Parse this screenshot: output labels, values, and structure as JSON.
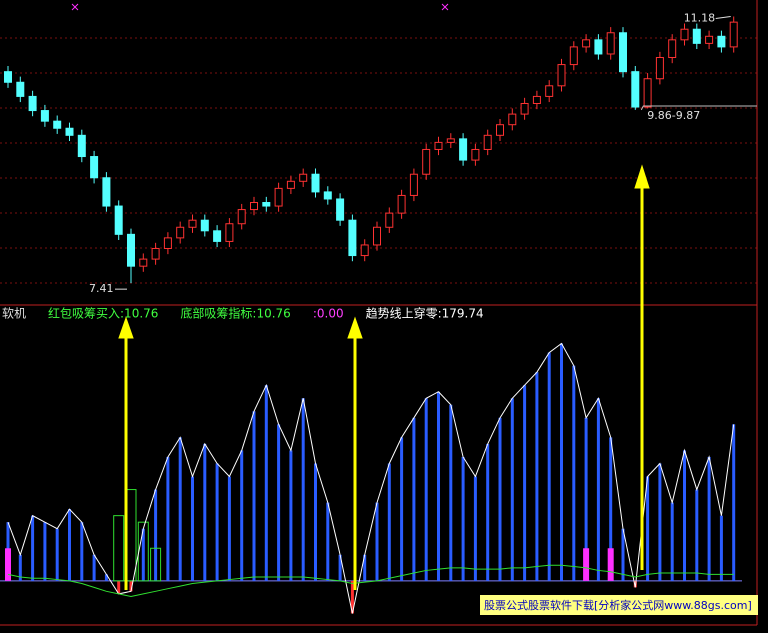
{
  "chart_data": [
    {
      "type": "candlestick",
      "ylim": [
        7.2,
        11.3
      ],
      "up_color": "#ff3232",
      "down_color": "#54ffff",
      "open": [
        10.4,
        10.25,
        10.05,
        9.85,
        9.7,
        9.6,
        9.5,
        9.2,
        8.9,
        8.5,
        8.1,
        7.65,
        7.75,
        7.9,
        8.05,
        8.2,
        8.3,
        8.15,
        8.0,
        8.25,
        8.45,
        8.55,
        8.5,
        8.75,
        8.85,
        8.95,
        8.7,
        8.6,
        8.3,
        7.8,
        7.95,
        8.2,
        8.4,
        8.65,
        8.95,
        9.3,
        9.4,
        9.45,
        9.15,
        9.3,
        9.5,
        9.65,
        9.8,
        9.95,
        10.05,
        10.2,
        10.5,
        10.75,
        10.85,
        10.65,
        10.95,
        10.4,
        9.9,
        10.3,
        10.6,
        10.85,
        11.0,
        10.8,
        10.9,
        10.75
      ],
      "high": [
        10.48,
        10.33,
        10.13,
        9.93,
        9.78,
        9.68,
        9.58,
        9.28,
        8.98,
        8.58,
        8.18,
        7.83,
        7.98,
        8.13,
        8.28,
        8.38,
        8.38,
        8.23,
        8.33,
        8.53,
        8.63,
        8.63,
        8.83,
        8.93,
        9.03,
        9.03,
        8.78,
        8.68,
        8.38,
        8.03,
        8.28,
        8.48,
        8.73,
        9.03,
        9.38,
        9.48,
        9.53,
        9.53,
        9.38,
        9.58,
        9.73,
        9.88,
        10.03,
        10.13,
        10.28,
        10.58,
        10.83,
        10.93,
        10.93,
        11.03,
        11.03,
        10.48,
        10.38,
        10.68,
        10.93,
        11.08,
        11.08,
        10.98,
        10.98,
        11.18
      ],
      "low": [
        10.17,
        9.97,
        9.77,
        9.62,
        9.52,
        9.42,
        9.12,
        8.82,
        8.42,
        8.02,
        7.41,
        7.57,
        7.67,
        7.82,
        7.97,
        8.12,
        8.07,
        7.92,
        7.92,
        8.17,
        8.37,
        8.42,
        8.42,
        8.67,
        8.77,
        8.62,
        8.52,
        8.22,
        7.72,
        7.72,
        7.87,
        8.12,
        8.32,
        8.57,
        8.87,
        9.22,
        9.32,
        9.07,
        9.07,
        9.22,
        9.42,
        9.57,
        9.72,
        9.87,
        9.97,
        10.12,
        10.42,
        10.67,
        10.57,
        10.57,
        10.32,
        9.86,
        9.88,
        10.22,
        10.52,
        10.77,
        10.72,
        10.72,
        10.67,
        10.67
      ],
      "close": [
        10.25,
        10.05,
        9.85,
        9.7,
        9.6,
        9.5,
        9.2,
        8.9,
        8.5,
        8.1,
        7.65,
        7.75,
        7.9,
        8.05,
        8.2,
        8.3,
        8.15,
        8.0,
        8.25,
        8.45,
        8.55,
        8.5,
        8.75,
        8.85,
        8.95,
        8.7,
        8.6,
        8.3,
        7.8,
        7.95,
        8.2,
        8.4,
        8.65,
        8.95,
        9.3,
        9.4,
        9.45,
        9.15,
        9.3,
        9.5,
        9.65,
        9.8,
        9.95,
        10.05,
        10.2,
        10.5,
        10.75,
        10.85,
        10.65,
        10.95,
        10.4,
        9.9,
        10.3,
        10.6,
        10.85,
        11.0,
        10.8,
        10.9,
        10.75,
        11.1
      ],
      "annotations": [
        {
          "text": "7.41",
          "index": 10
        },
        {
          "text": "11.18",
          "index": 59
        },
        {
          "text": "9.86-9.87",
          "index": 51
        }
      ]
    },
    {
      "type": "bar",
      "ylim": [
        -30,
        200
      ],
      "indicator_labels": [
        {
          "text": "软机",
          "color": "#e0e0e0"
        },
        {
          "text": "红包吸筹买入:10.76",
          "color": "#40ff40"
        },
        {
          "text": "底部吸筹指标:10.76",
          "color": "#40ff40"
        },
        {
          "text": ":0.00",
          "color": "#ff40ff"
        },
        {
          "text": "趋势线上穿零:179.74",
          "color": "#ffffff"
        }
      ],
      "values": [
        45,
        20,
        50,
        45,
        40,
        55,
        45,
        20,
        5,
        -10,
        -8,
        40,
        70,
        95,
        110,
        80,
        105,
        90,
        80,
        100,
        130,
        150,
        120,
        100,
        140,
        90,
        60,
        20,
        -25,
        20,
        60,
        90,
        110,
        125,
        140,
        145,
        135,
        95,
        80,
        105,
        125,
        140,
        150,
        160,
        175,
        182,
        165,
        125,
        140,
        110,
        40,
        -5,
        80,
        90,
        60,
        100,
        70,
        95,
        50,
        120
      ],
      "color": "#2a5cff",
      "negative_color": "#ff3030",
      "outline_color": "#ffffff",
      "trend": {
        "color": "#30e030",
        "values": [
          5,
          3,
          2,
          2,
          1,
          0,
          -2,
          -5,
          -8,
          -10,
          -12,
          -10,
          -8,
          -6,
          -4,
          -2,
          -1,
          0,
          1,
          2,
          3,
          3,
          3,
          3,
          3,
          2,
          1,
          0,
          -2,
          -1,
          0,
          2,
          4,
          6,
          8,
          9,
          10,
          10,
          9,
          9,
          9,
          10,
          10,
          11,
          12,
          12,
          11,
          10,
          8,
          7,
          5,
          3,
          5,
          6,
          6,
          6,
          6,
          5,
          5,
          5
        ]
      },
      "signal": {
        "color": "#30e030",
        "values": [
          0,
          0,
          0,
          0,
          0,
          0,
          0,
          0,
          0,
          50,
          70,
          45,
          25,
          0,
          0,
          0,
          0,
          0,
          0,
          0,
          0,
          0,
          0,
          0,
          0,
          0,
          0,
          0,
          0,
          0,
          0,
          0,
          0,
          0,
          0,
          0,
          0,
          0,
          0,
          0,
          0,
          0,
          0,
          0,
          0,
          0,
          0,
          0,
          0,
          0,
          0,
          0,
          0,
          0,
          0,
          0,
          0,
          0,
          0,
          0
        ]
      },
      "marker": {
        "color": "#ff30ff",
        "values": [
          25,
          0,
          0,
          0,
          0,
          0,
          0,
          0,
          0,
          0,
          0,
          0,
          0,
          0,
          0,
          0,
          0,
          0,
          0,
          0,
          0,
          0,
          0,
          0,
          0,
          0,
          0,
          0,
          0,
          0,
          0,
          0,
          0,
          0,
          0,
          0,
          0,
          0,
          0,
          0,
          0,
          0,
          0,
          0,
          0,
          0,
          0,
          25,
          0,
          25,
          0,
          0,
          0,
          0,
          0,
          0,
          0,
          0,
          0,
          0
        ]
      }
    }
  ],
  "watermark": "股票公式股票软件下载[分析家公式网www.88gs.com]"
}
